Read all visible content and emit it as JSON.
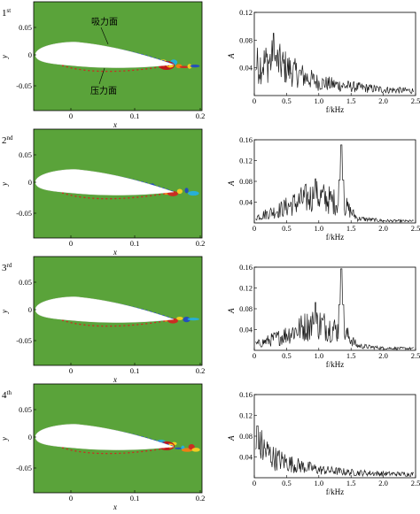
{
  "colors": {
    "field": "#5aa33a",
    "airfoil": "#ffffff",
    "trace": "#1a1a1a",
    "axis": "#000000"
  },
  "annotations": {
    "suction": "吸力面",
    "pressure": "压力面"
  },
  "left_axes": {
    "xlabel": "x",
    "ylabel": "y",
    "xticks": [
      "0",
      "0.1",
      "0.2"
    ],
    "yticks": [
      "0.05",
      "0",
      "-0.05"
    ]
  },
  "right_axes": {
    "xlabel": "f/kHz",
    "ylabel": "A",
    "xticks": [
      "0",
      "0.5",
      "1.0",
      "1.5",
      "2.0",
      "2.5"
    ]
  },
  "chart_data": [
    {
      "type": "line",
      "panel": "1st",
      "x_range": [
        0,
        2.5
      ],
      "ylim": [
        0,
        0.12
      ],
      "yticks": [
        "0.04",
        "0.08",
        "0.12"
      ],
      "envelope": {
        "x": [
          0,
          0.3,
          0.6,
          1.0,
          1.5,
          2.0,
          2.5
        ],
        "y": [
          0.05,
          0.06,
          0.04,
          0.022,
          0.015,
          0.01,
          0.008
        ]
      },
      "peaks": [
        {
          "x": 0.3,
          "y": 0.09
        }
      ]
    },
    {
      "type": "line",
      "panel": "2nd",
      "x_range": [
        0,
        2.5
      ],
      "ylim": [
        0,
        0.16
      ],
      "yticks": [
        "0.04",
        "0.08",
        "0.12",
        "0.16"
      ],
      "envelope": {
        "x": [
          0,
          0.4,
          0.8,
          1.0,
          1.2,
          1.4,
          1.6,
          2.0,
          2.5
        ],
        "y": [
          0.012,
          0.03,
          0.055,
          0.06,
          0.05,
          0.04,
          0.01,
          0.005,
          0.004
        ]
      },
      "peaks": [
        {
          "x": 1.35,
          "y": 0.15
        },
        {
          "x": 0.95,
          "y": 0.085
        }
      ]
    },
    {
      "type": "line",
      "panel": "3rd",
      "x_range": [
        0,
        2.5
      ],
      "ylim": [
        0,
        0.16
      ],
      "yticks": [
        "0.04",
        "0.08",
        "0.12",
        "0.16"
      ],
      "envelope": {
        "x": [
          0,
          0.4,
          0.8,
          1.0,
          1.2,
          1.4,
          1.6,
          2.0,
          2.5
        ],
        "y": [
          0.012,
          0.03,
          0.055,
          0.06,
          0.05,
          0.04,
          0.01,
          0.005,
          0.004
        ]
      },
      "peaks": [
        {
          "x": 1.35,
          "y": 0.16
        },
        {
          "x": 0.95,
          "y": 0.092
        }
      ]
    },
    {
      "type": "line",
      "panel": "4th",
      "x_range": [
        0,
        2.5
      ],
      "ylim": [
        0,
        0.16
      ],
      "yticks": [
        "0.04",
        "0.08",
        "0.12",
        "0.16"
      ],
      "envelope": {
        "x": [
          0,
          0.1,
          0.3,
          0.6,
          1.0,
          1.5,
          2.0,
          2.5
        ],
        "y": [
          0.05,
          0.07,
          0.045,
          0.03,
          0.018,
          0.012,
          0.009,
          0.008
        ]
      },
      "peaks": [
        {
          "x": 0.05,
          "y": 0.1
        }
      ]
    }
  ],
  "panels": [
    {
      "ordinal": "1",
      "suffix": "st"
    },
    {
      "ordinal": "2",
      "suffix": "nd"
    },
    {
      "ordinal": "3",
      "suffix": "rd"
    },
    {
      "ordinal": "4",
      "suffix": "th"
    }
  ]
}
